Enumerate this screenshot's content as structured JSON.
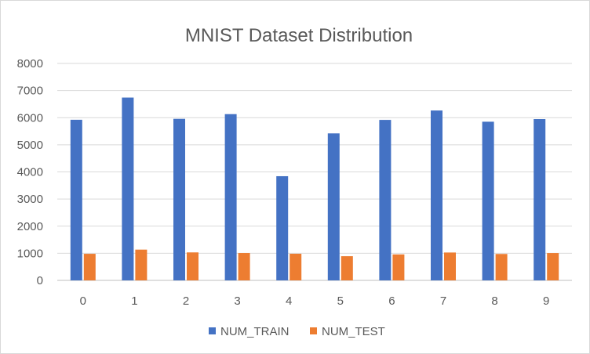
{
  "chart_data": {
    "type": "bar",
    "title": "MNIST Dataset Distribution",
    "categories": [
      "0",
      "1",
      "2",
      "3",
      "4",
      "5",
      "6",
      "7",
      "8",
      "9"
    ],
    "series": [
      {
        "name": "NUM_TRAIN",
        "color": "#4472c4",
        "values": [
          5923,
          6742,
          5958,
          6131,
          3842,
          5421,
          5918,
          6265,
          5851,
          5949
        ]
      },
      {
        "name": "NUM_TEST",
        "color": "#ed7d31",
        "values": [
          980,
          1135,
          1032,
          1010,
          982,
          892,
          958,
          1028,
          974,
          1009
        ]
      }
    ],
    "y_ticks": [
      "0",
      "1000",
      "2000",
      "3000",
      "4000",
      "5000",
      "6000",
      "7000",
      "8000"
    ],
    "ylim": [
      0,
      8000
    ],
    "grid": true,
    "legend_position": "bottom"
  }
}
